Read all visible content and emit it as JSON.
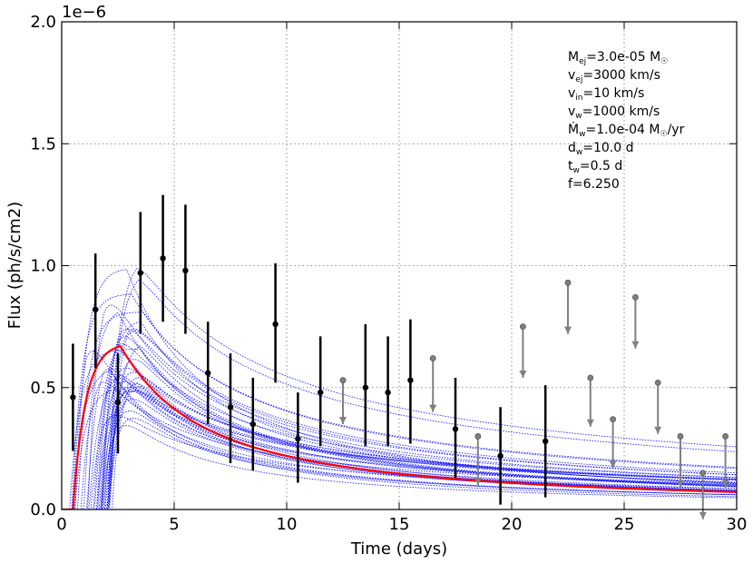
{
  "chart_data": {
    "type": "line",
    "title": "",
    "xlabel": "Time (days)",
    "ylabel": "Flux (ph/s/cm2)",
    "y_scale_label": "1e−6",
    "xlim": [
      0,
      30
    ],
    "ylim": [
      0,
      2.0
    ],
    "x_ticks": [
      "0",
      "5",
      "10",
      "15",
      "20",
      "25",
      "30"
    ],
    "y_ticks": [
      "0.0",
      "0.5",
      "1.0",
      "1.5",
      "2.0"
    ],
    "grid": true,
    "model_params": {
      "t_peak": 2.6,
      "peak": 0.685,
      "onset": 0.5,
      "decay_rise_tau": 2.8,
      "late_value": 0.08
    },
    "ensemble_count": 40,
    "detections": [
      {
        "x": 0.5,
        "y": 0.46,
        "lo": 0.24,
        "hi": 0.68
      },
      {
        "x": 1.5,
        "y": 0.82,
        "lo": 0.58,
        "hi": 1.05
      },
      {
        "x": 2.5,
        "y": 0.44,
        "lo": 0.23,
        "hi": 0.64
      },
      {
        "x": 3.5,
        "y": 0.97,
        "lo": 0.72,
        "hi": 1.22
      },
      {
        "x": 4.5,
        "y": 1.03,
        "lo": 0.77,
        "hi": 1.29
      },
      {
        "x": 5.5,
        "y": 0.98,
        "lo": 0.72,
        "hi": 1.25
      },
      {
        "x": 6.5,
        "y": 0.56,
        "lo": 0.35,
        "hi": 0.77
      },
      {
        "x": 7.5,
        "y": 0.42,
        "lo": 0.19,
        "hi": 0.64
      },
      {
        "x": 8.5,
        "y": 0.35,
        "lo": 0.16,
        "hi": 0.54
      },
      {
        "x": 9.5,
        "y": 0.76,
        "lo": 0.52,
        "hi": 1.01
      },
      {
        "x": 10.5,
        "y": 0.29,
        "lo": 0.11,
        "hi": 0.48
      },
      {
        "x": 11.5,
        "y": 0.48,
        "lo": 0.26,
        "hi": 0.71
      },
      {
        "x": 13.5,
        "y": 0.5,
        "lo": 0.26,
        "hi": 0.76
      },
      {
        "x": 14.5,
        "y": 0.48,
        "lo": 0.26,
        "hi": 0.71
      },
      {
        "x": 15.5,
        "y": 0.53,
        "lo": 0.27,
        "hi": 0.78
      },
      {
        "x": 17.5,
        "y": 0.33,
        "lo": 0.13,
        "hi": 0.54
      },
      {
        "x": 19.5,
        "y": 0.22,
        "lo": 0.02,
        "hi": 0.42
      },
      {
        "x": 21.5,
        "y": 0.28,
        "lo": 0.05,
        "hi": 0.51
      }
    ],
    "upper_limits": [
      {
        "x": 12.5,
        "y": 0.53,
        "y_end": 0.35
      },
      {
        "x": 16.5,
        "y": 0.62,
        "y_end": 0.4
      },
      {
        "x": 18.5,
        "y": 0.3,
        "y_end": 0.1
      },
      {
        "x": 20.5,
        "y": 0.75,
        "y_end": 0.54
      },
      {
        "x": 22.5,
        "y": 0.93,
        "y_end": 0.72
      },
      {
        "x": 23.5,
        "y": 0.54,
        "y_end": 0.34
      },
      {
        "x": 24.5,
        "y": 0.37,
        "y_end": 0.17
      },
      {
        "x": 25.5,
        "y": 0.87,
        "y_end": 0.66
      },
      {
        "x": 26.5,
        "y": 0.52,
        "y_end": 0.31
      },
      {
        "x": 27.5,
        "y": 0.3,
        "y_end": 0.09
      },
      {
        "x": 28.5,
        "y": 0.15,
        "y_end": -0.04
      },
      {
        "x": 29.5,
        "y": 0.3,
        "y_end": 0.09
      }
    ],
    "colors": {
      "best_fit": "#ff0000",
      "ensemble": "#0000ff",
      "detections": "#000000",
      "upper_limits": "#808080"
    }
  },
  "params": {
    "m_ej": {
      "name": "M",
      "sub": "ej",
      "value": "=3.0e-05 M",
      "unit_sub": "☉"
    },
    "v_ej": {
      "name": "v",
      "sub": "ej",
      "value": "=3000 km/s"
    },
    "v_in": {
      "name": "v",
      "sub": "in",
      "value": "=10 km/s"
    },
    "v_w": {
      "name": "v",
      "sub": "w",
      "value": "=1000 km/s"
    },
    "mdot_w": {
      "name": "Ṁ",
      "sub": "w",
      "value": "=1.0e-04 M",
      "unit_sub": "☉",
      "tail": "/yr"
    },
    "d_w": {
      "name": "d",
      "sub": "w",
      "value": "=10.0 d"
    },
    "t_w": {
      "name": "t",
      "sub": "w",
      "value": "=0.5 d"
    },
    "f": {
      "name": "f",
      "value": "=6.250"
    }
  }
}
